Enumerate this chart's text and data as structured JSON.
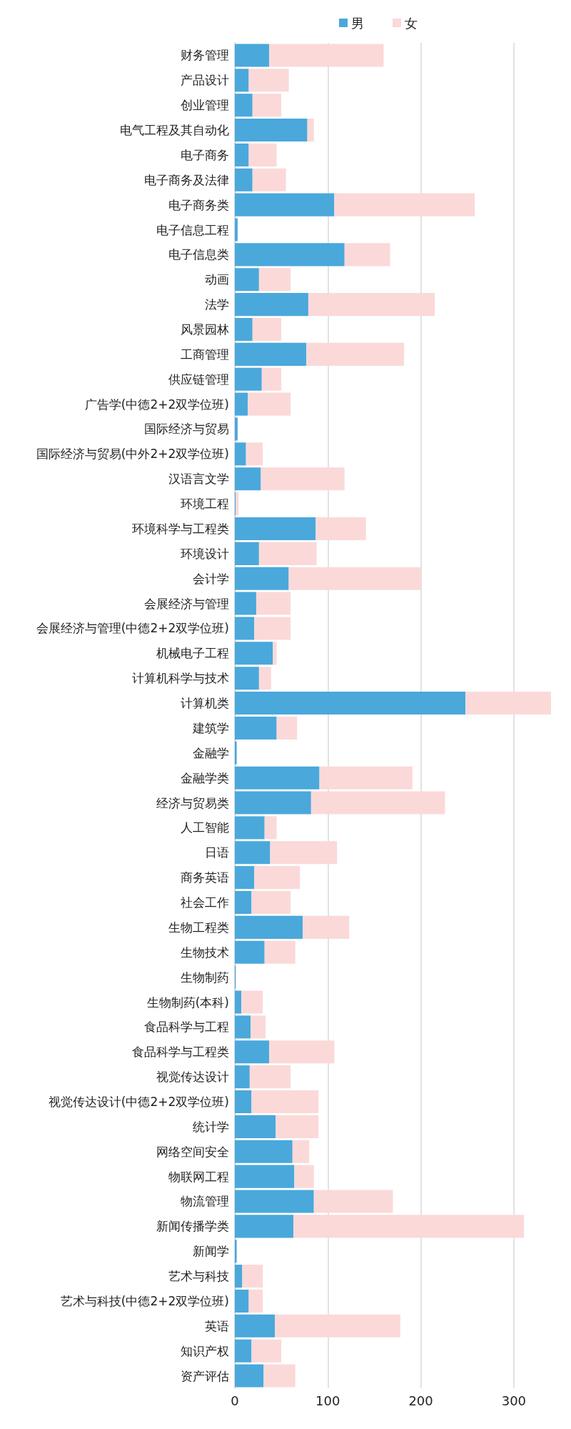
{
  "chart_data": {
    "type": "bar",
    "orientation": "horizontal",
    "stacked": true,
    "categories": [
      "财务管理",
      "产品设计",
      "创业管理",
      "电气工程及其自动化",
      "电子商务",
      "电子商务及法律",
      "电子商务类",
      "电子信息工程",
      "电子信息类",
      "动画",
      "法学",
      "风景园林",
      "工商管理",
      "供应链管理",
      "广告学(中德2+2双学位班)",
      "国际经济与贸易",
      "国际经济与贸易(中外2+2双学位班)",
      "汉语言文学",
      "环境工程",
      "环境科学与工程类",
      "环境设计",
      "会计学",
      "会展经济与管理",
      "会展经济与管理(中德2+2双学位班)",
      "机械电子工程",
      "计算机科学与技术",
      "计算机类",
      "建筑学",
      "金融学",
      "金融学类",
      "经济与贸易类",
      "人工智能",
      "日语",
      "商务英语",
      "社会工作",
      "生物工程类",
      "生物技术",
      "生物制药",
      "生物制药(本科)",
      "食品科学与工程",
      "食品科学与工程类",
      "视觉传达设计",
      "视觉传达设计(中德2+2双学位班)",
      "统计学",
      "网络空间安全",
      "物联网工程",
      "物流管理",
      "新闻传播学类",
      "新闻学",
      "艺术与科技",
      "艺术与科技(中德2+2双学位班)",
      "英语",
      "知识产权",
      "资产评估"
    ],
    "series": [
      {
        "name": "男",
        "color": "#4aa8db",
        "values": [
          37,
          15,
          19,
          78,
          15,
          19,
          107,
          3,
          118,
          26,
          79,
          19,
          77,
          29,
          14,
          3,
          12,
          28,
          1,
          87,
          26,
          58,
          23,
          21,
          41,
          26,
          248,
          45,
          2,
          91,
          82,
          32,
          38,
          21,
          18,
          73,
          32,
          1,
          7,
          17,
          37,
          16,
          18,
          44,
          62,
          64,
          85,
          63,
          2,
          8,
          15,
          43,
          18,
          31
        ]
      },
      {
        "name": "女",
        "color": "#fbd9d9",
        "values": [
          123,
          43,
          31,
          7,
          30,
          36,
          151,
          0,
          49,
          34,
          136,
          31,
          105,
          21,
          46,
          null,
          18,
          90,
          3,
          54,
          62,
          142,
          37,
          39,
          4,
          13,
          92,
          22,
          null,
          100,
          144,
          13,
          72,
          49,
          42,
          50,
          33,
          0,
          23,
          16,
          70,
          44,
          72,
          46,
          18,
          21,
          85,
          248,
          0,
          22,
          15,
          135,
          32,
          34
        ]
      }
    ],
    "xlim": [
      0,
      340
    ],
    "xticks": [
      0,
      100,
      200,
      300
    ],
    "grid": "x",
    "legend": "top"
  }
}
